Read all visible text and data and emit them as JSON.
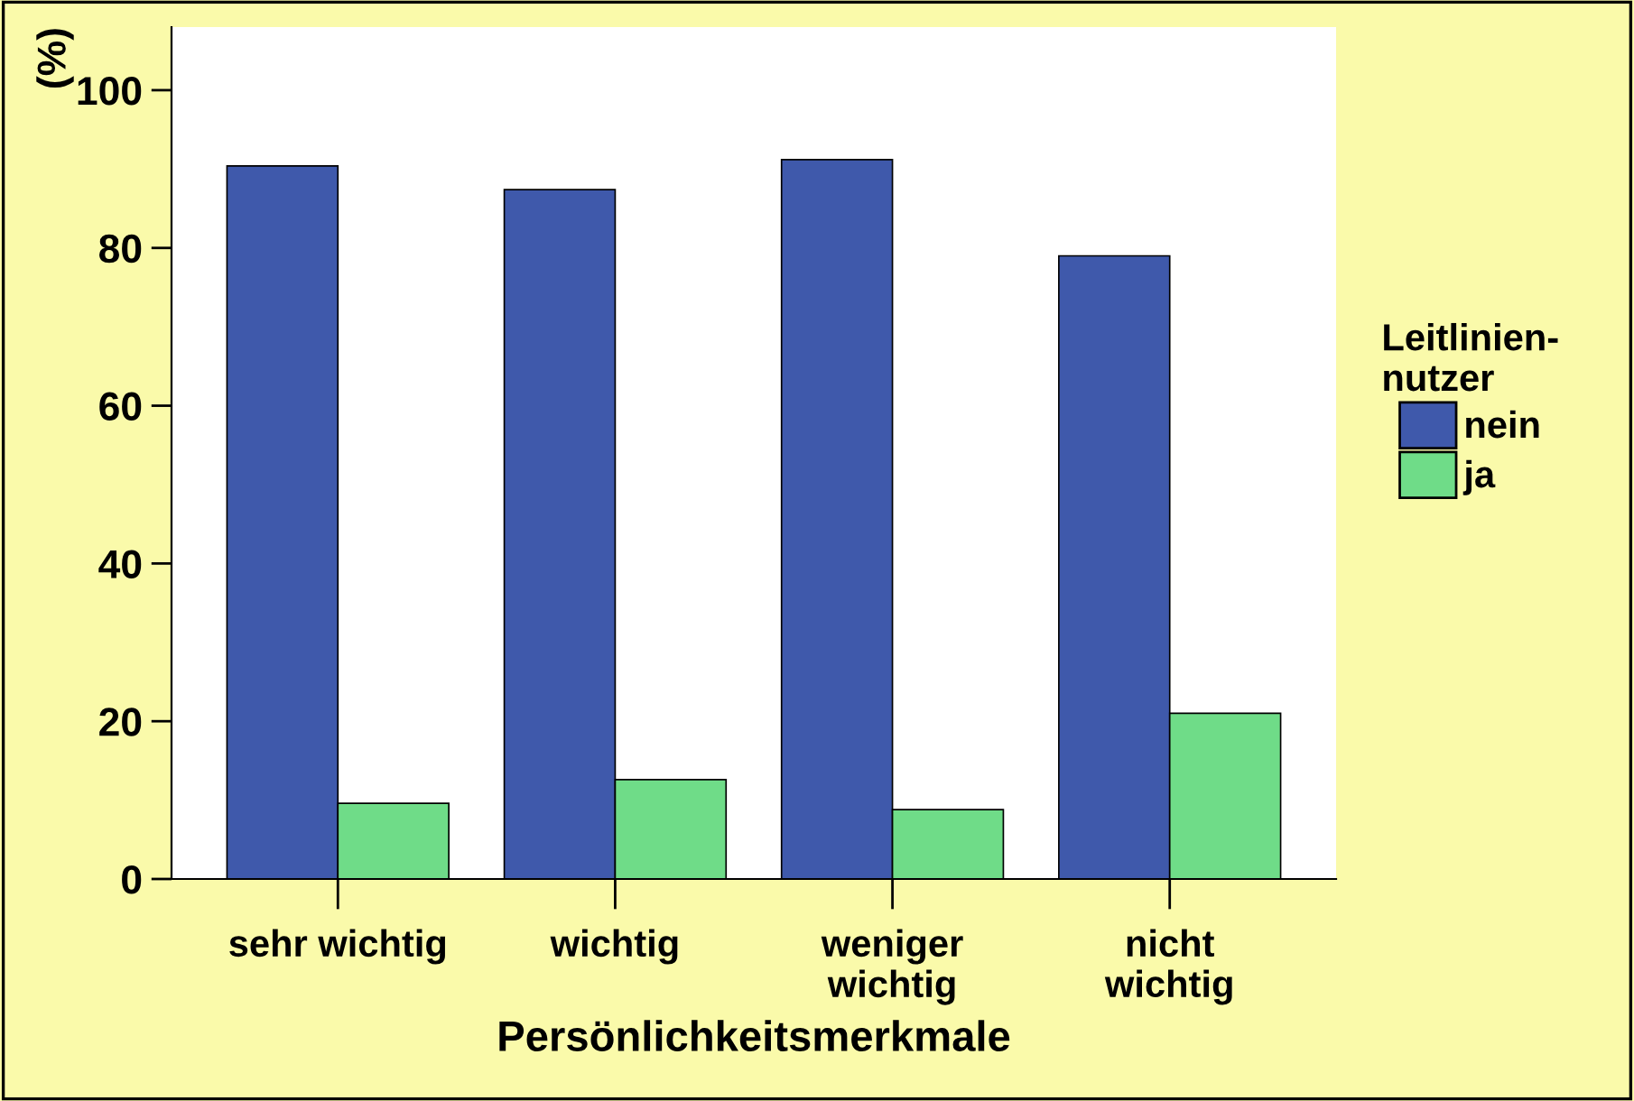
{
  "chart_data": {
    "type": "bar",
    "xlabel": "Persönlichkeitsmerkmale",
    "ylabel": "(%)",
    "legend_title": "Leitlinien-\nnutzer",
    "categories": [
      "sehr wichtig",
      "wichtig",
      "weniger\nwichtig",
      "nicht\nwichtig"
    ],
    "series": [
      {
        "name": "nein",
        "color": "#3f59ab",
        "values": [
          90.4,
          87.4,
          91.2,
          79
        ]
      },
      {
        "name": "ja",
        "color": "#6fdc88",
        "values": [
          9.6,
          12.6,
          8.8,
          21
        ]
      }
    ],
    "ylim": [
      0,
      108
    ],
    "yticks": [
      0,
      20,
      40,
      60,
      80,
      100
    ],
    "grid": false,
    "legend": "right"
  }
}
